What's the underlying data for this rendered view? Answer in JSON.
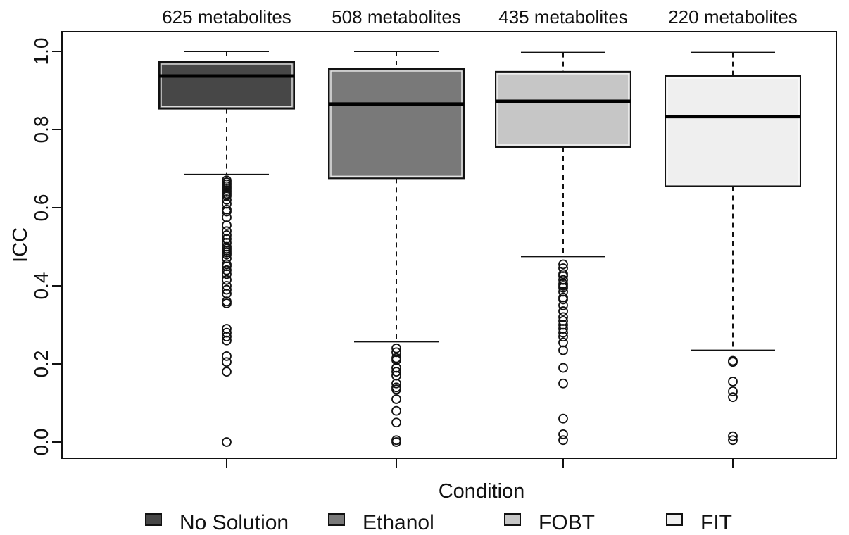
{
  "chart_data": {
    "type": "box",
    "xlabel": "Condition",
    "ylabel": "ICC",
    "ylim": [
      0,
      1
    ],
    "yticks": [
      "0.0",
      "0.2",
      "0.4",
      "0.6",
      "0.8",
      "1.0"
    ],
    "annotations": [
      "625 metabolites",
      "508 metabolites",
      "435 metabolites",
      "220 metabolites"
    ],
    "legend_position": "bottom",
    "series": [
      {
        "name": "No Solution",
        "color": "#474747",
        "whisker_low": 0.685,
        "q1": 0.853,
        "median": 0.937,
        "q3": 0.973,
        "whisker_high": 1.0,
        "outliers": [
          0.67,
          0.665,
          0.66,
          0.655,
          0.65,
          0.645,
          0.64,
          0.635,
          0.63,
          0.62,
          0.61,
          0.595,
          0.59,
          0.575,
          0.555,
          0.54,
          0.53,
          0.52,
          0.51,
          0.5,
          0.495,
          0.49,
          0.485,
          0.48,
          0.47,
          0.455,
          0.45,
          0.44,
          0.43,
          0.415,
          0.4,
          0.39,
          0.38,
          0.36,
          0.355,
          0.29,
          0.28,
          0.27,
          0.26,
          0.22,
          0.205,
          0.18,
          0.0
        ]
      },
      {
        "name": "Ethanol",
        "color": "#797979",
        "whisker_low": 0.257,
        "q1": 0.675,
        "median": 0.865,
        "q3": 0.955,
        "whisker_high": 1.0,
        "outliers": [
          0.24,
          0.23,
          0.215,
          0.21,
          0.19,
          0.18,
          0.17,
          0.15,
          0.14,
          0.135,
          0.11,
          0.08,
          0.05,
          0.005,
          0.0
        ]
      },
      {
        "name": "FOBT",
        "color": "#c6c6c6",
        "whisker_low": 0.475,
        "q1": 0.755,
        "median": 0.872,
        "q3": 0.948,
        "whisker_high": 0.997,
        "outliers": [
          0.455,
          0.445,
          0.43,
          0.425,
          0.415,
          0.405,
          0.4,
          0.395,
          0.385,
          0.37,
          0.365,
          0.35,
          0.335,
          0.32,
          0.31,
          0.3,
          0.29,
          0.28,
          0.27,
          0.255,
          0.235,
          0.19,
          0.15,
          0.06,
          0.02,
          0.005
        ]
      },
      {
        "name": "FIT",
        "color": "#efefef",
        "whisker_low": 0.235,
        "q1": 0.655,
        "median": 0.833,
        "q3": 0.937,
        "whisker_high": 0.997,
        "outliers": [
          0.208,
          0.205,
          0.155,
          0.13,
          0.115,
          0.015,
          0.005
        ]
      }
    ]
  }
}
